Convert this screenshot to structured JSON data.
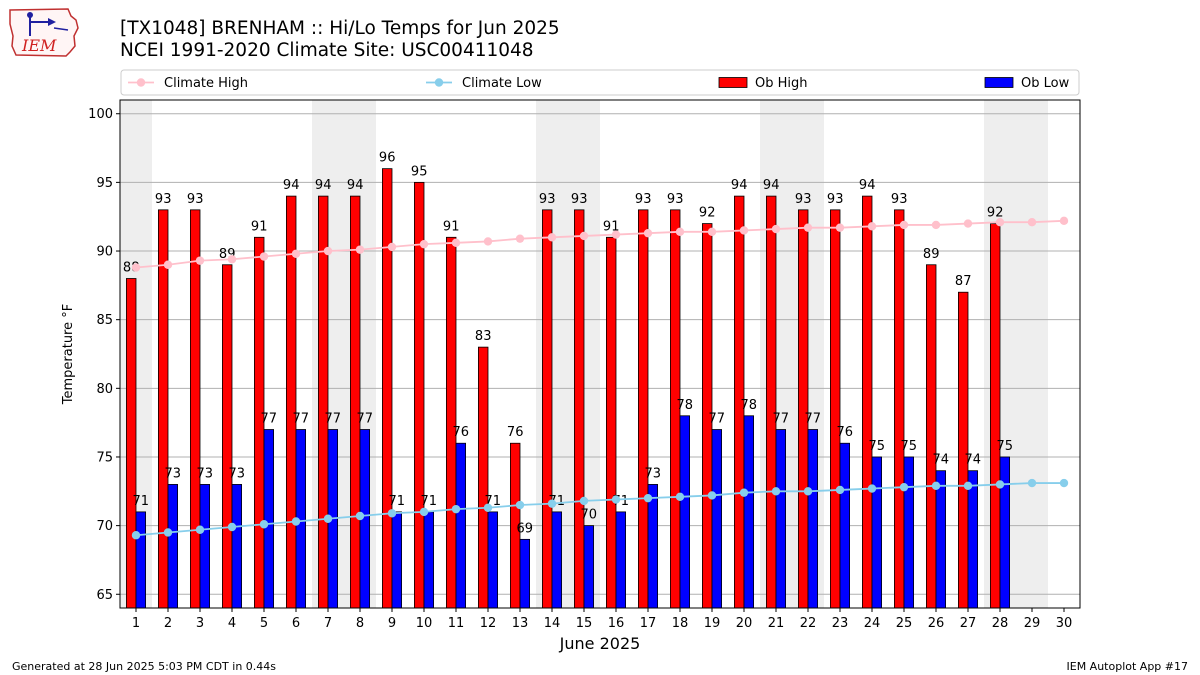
{
  "header": {
    "title_line1": "[TX1048] BRENHAM :: Hi/Lo Temps for Jun 2025",
    "title_line2": "NCEI 1991-2020 Climate Site: USC00411048",
    "logo_text": "IEM"
  },
  "footer": {
    "generated": "Generated at 28 Jun 2025 5:03 PM CDT in 0.44s",
    "app": "IEM Autoplot App #17"
  },
  "chart_data": {
    "type": "bar",
    "xlabel": "June 2025",
    "ylabel": "Temperature °F",
    "ylim": [
      64,
      101
    ],
    "yticks": [
      65,
      70,
      75,
      80,
      85,
      90,
      95,
      100
    ],
    "grid": "horizontal",
    "legend_position": "top",
    "weekend_shading": [
      [
        1,
        1
      ],
      [
        7,
        8
      ],
      [
        14,
        15
      ],
      [
        21,
        22
      ],
      [
        28,
        29
      ]
    ],
    "days": [
      1,
      2,
      3,
      4,
      5,
      6,
      7,
      8,
      9,
      10,
      11,
      12,
      13,
      14,
      15,
      16,
      17,
      18,
      19,
      20,
      21,
      22,
      23,
      24,
      25,
      26,
      27,
      28,
      29,
      30
    ],
    "series": [
      {
        "name": "Climate High",
        "kind": "line",
        "color": "#ffc0cb",
        "values": [
          88.8,
          89.0,
          89.3,
          89.4,
          89.6,
          89.8,
          90.0,
          90.1,
          90.3,
          90.5,
          90.6,
          90.7,
          90.9,
          91.0,
          91.1,
          91.2,
          91.3,
          91.4,
          91.4,
          91.5,
          91.6,
          91.7,
          91.7,
          91.8,
          91.9,
          91.9,
          92.0,
          92.1,
          92.1,
          92.2
        ]
      },
      {
        "name": "Climate Low",
        "kind": "line",
        "color": "#87ceeb",
        "values": [
          69.3,
          69.5,
          69.7,
          69.9,
          70.1,
          70.3,
          70.5,
          70.7,
          70.9,
          71.0,
          71.2,
          71.3,
          71.5,
          71.6,
          71.8,
          71.9,
          72.0,
          72.1,
          72.2,
          72.4,
          72.5,
          72.5,
          72.6,
          72.7,
          72.8,
          72.9,
          72.9,
          73.0,
          73.1,
          73.1
        ]
      },
      {
        "name": "Ob High",
        "kind": "bar",
        "color": "#ff0000",
        "values": [
          88,
          93,
          93,
          89,
          91,
          94,
          94,
          94,
          96,
          95,
          91,
          83,
          76,
          93,
          93,
          91,
          93,
          93,
          92,
          94,
          94,
          93,
          93,
          94,
          93,
          89,
          87,
          92
        ]
      },
      {
        "name": "Ob Low",
        "kind": "bar",
        "color": "#0000ff",
        "values": [
          71,
          73,
          73,
          73,
          77,
          77,
          77,
          77,
          71,
          71,
          76,
          71,
          69,
          71,
          70,
          71,
          73,
          78,
          77,
          78,
          77,
          77,
          76,
          75,
          75,
          74,
          74,
          75
        ]
      }
    ]
  }
}
